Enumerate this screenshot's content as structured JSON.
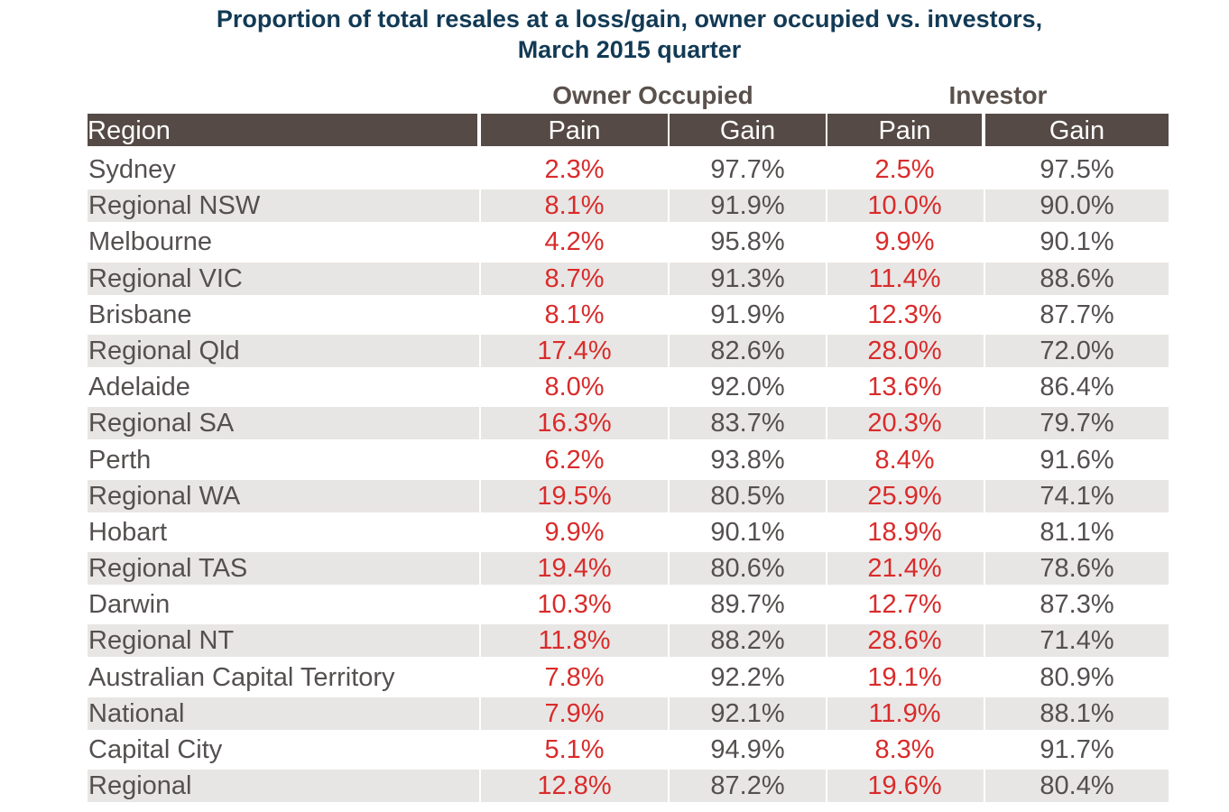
{
  "title_line1": "Proportion of total resales at a loss/gain, owner occupied vs. investors,",
  "title_line2": "March 2015 quarter",
  "groups": {
    "owner": "Owner Occupied",
    "investor": "Investor"
  },
  "headers": {
    "region": "Region",
    "owner_pain": "Pain",
    "owner_gain": "Gain",
    "investor_pain": "Pain",
    "investor_gain": "Gain"
  },
  "colors": {
    "title": "#123a55",
    "header_bg": "#554a45",
    "group_text": "#5a514c",
    "pain": "#d92b2b",
    "text": "#555050",
    "stripe": "#e8e6e4"
  },
  "chart_data": {
    "type": "table",
    "title": "Proportion of total resales at a loss/gain, owner occupied vs. investors, March 2015 quarter",
    "column_groups": [
      "Owner Occupied",
      "Investor"
    ],
    "columns": [
      "Region",
      "Pain",
      "Gain",
      "Pain",
      "Gain"
    ],
    "rows": [
      {
        "region": "Sydney",
        "owner_pain": "2.3%",
        "owner_gain": "97.7%",
        "investor_pain": "2.5%",
        "investor_gain": "97.5%"
      },
      {
        "region": "Regional NSW",
        "owner_pain": "8.1%",
        "owner_gain": "91.9%",
        "investor_pain": "10.0%",
        "investor_gain": "90.0%"
      },
      {
        "region": "Melbourne",
        "owner_pain": "4.2%",
        "owner_gain": "95.8%",
        "investor_pain": "9.9%",
        "investor_gain": "90.1%"
      },
      {
        "region": "Regional VIC",
        "owner_pain": "8.7%",
        "owner_gain": "91.3%",
        "investor_pain": "11.4%",
        "investor_gain": "88.6%"
      },
      {
        "region": "Brisbane",
        "owner_pain": "8.1%",
        "owner_gain": "91.9%",
        "investor_pain": "12.3%",
        "investor_gain": "87.7%"
      },
      {
        "region": "Regional Qld",
        "owner_pain": "17.4%",
        "owner_gain": "82.6%",
        "investor_pain": "28.0%",
        "investor_gain": "72.0%"
      },
      {
        "region": "Adelaide",
        "owner_pain": "8.0%",
        "owner_gain": "92.0%",
        "investor_pain": "13.6%",
        "investor_gain": "86.4%"
      },
      {
        "region": "Regional SA",
        "owner_pain": "16.3%",
        "owner_gain": "83.7%",
        "investor_pain": "20.3%",
        "investor_gain": "79.7%"
      },
      {
        "region": "Perth",
        "owner_pain": "6.2%",
        "owner_gain": "93.8%",
        "investor_pain": "8.4%",
        "investor_gain": "91.6%"
      },
      {
        "region": "Regional WA",
        "owner_pain": "19.5%",
        "owner_gain": "80.5%",
        "investor_pain": "25.9%",
        "investor_gain": "74.1%"
      },
      {
        "region": "Hobart",
        "owner_pain": "9.9%",
        "owner_gain": "90.1%",
        "investor_pain": "18.9%",
        "investor_gain": "81.1%"
      },
      {
        "region": "Regional TAS",
        "owner_pain": "19.4%",
        "owner_gain": "80.6%",
        "investor_pain": "21.4%",
        "investor_gain": "78.6%"
      },
      {
        "region": "Darwin",
        "owner_pain": "10.3%",
        "owner_gain": "89.7%",
        "investor_pain": "12.7%",
        "investor_gain": "87.3%"
      },
      {
        "region": "Regional NT",
        "owner_pain": "11.8%",
        "owner_gain": "88.2%",
        "investor_pain": "28.6%",
        "investor_gain": "71.4%"
      },
      {
        "region": "Australian Capital Territory",
        "owner_pain": "7.8%",
        "owner_gain": "92.2%",
        "investor_pain": "19.1%",
        "investor_gain": "80.9%"
      },
      {
        "region": "National",
        "owner_pain": "7.9%",
        "owner_gain": "92.1%",
        "investor_pain": "11.9%",
        "investor_gain": "88.1%"
      },
      {
        "region": "Capital City",
        "owner_pain": "5.1%",
        "owner_gain": "94.9%",
        "investor_pain": "8.3%",
        "investor_gain": "91.7%"
      },
      {
        "region": "Regional",
        "owner_pain": "12.8%",
        "owner_gain": "87.2%",
        "investor_pain": "19.6%",
        "investor_gain": "80.4%"
      }
    ]
  }
}
